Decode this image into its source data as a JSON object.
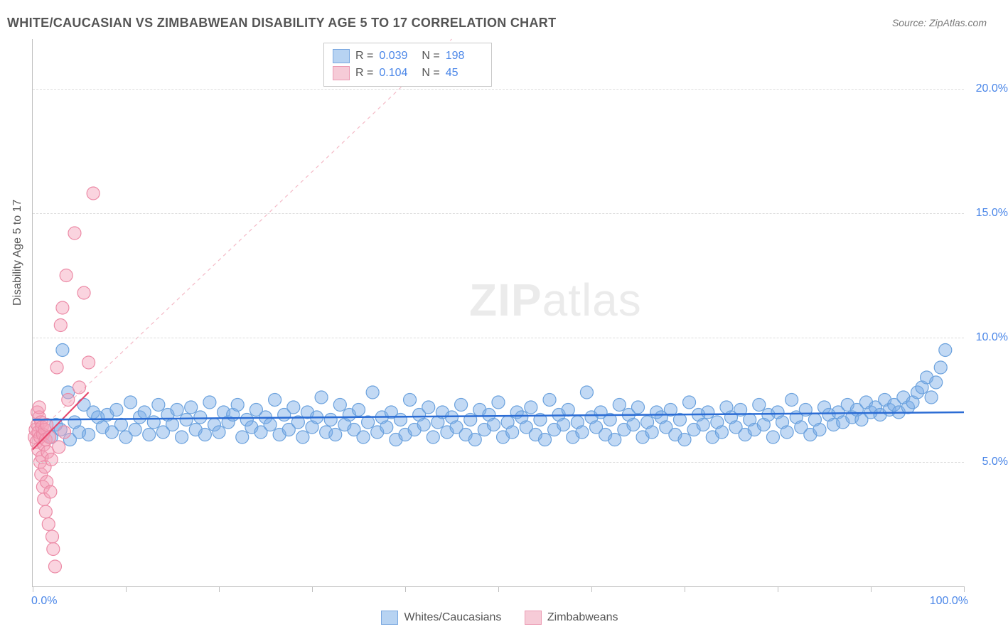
{
  "title": "WHITE/CAUCASIAN VS ZIMBABWEAN DISABILITY AGE 5 TO 17 CORRELATION CHART",
  "source_label": "Source: ZipAtlas.com",
  "y_axis_label": "Disability Age 5 to 17",
  "watermark": {
    "zip": "ZIP",
    "atlas": "atlas"
  },
  "chart": {
    "type": "scatter",
    "x_min": 0.0,
    "x_max": 100.0,
    "y_min": 0.0,
    "y_max": 22.0,
    "y_ticks": [
      5.0,
      10.0,
      15.0,
      20.0
    ],
    "y_tick_labels": [
      "5.0%",
      "10.0%",
      "15.0%",
      "20.0%"
    ],
    "x_ticks": [
      0,
      10,
      20,
      30,
      40,
      50,
      60,
      70,
      80,
      90,
      100
    ],
    "x_axis_min_label": "0.0%",
    "x_axis_max_label": "100.0%",
    "grid_color": "#dcdcdc",
    "axis_color": "#bfbfbf",
    "marker_radius": 9,
    "marker_stroke_width": 1.2,
    "series": [
      {
        "name": "Whites/Caucasians",
        "fill_color": "rgba(120,170,230,0.45)",
        "stroke_color": "#6aa1dd",
        "swatch_fill": "#b7d3f2",
        "swatch_border": "#7aa8e0",
        "r_value": "0.039",
        "n_value": "198",
        "regression": {
          "x1": 0.0,
          "y1": 6.7,
          "x2": 100.0,
          "y2": 7.0,
          "color": "#2b6cd4",
          "width": 2.5,
          "dash": "none"
        },
        "trend_dash": {
          "x1": 0.0,
          "y1": 6.0,
          "x2": 45.0,
          "y2": 22.0,
          "color": "#f4b9c6",
          "width": 1.2,
          "dash": "5,5"
        },
        "points": [
          [
            2.0,
            6.0
          ],
          [
            2.5,
            6.5
          ],
          [
            3.0,
            6.3
          ],
          [
            3.2,
            9.5
          ],
          [
            3.8,
            7.8
          ],
          [
            4.0,
            5.9
          ],
          [
            4.5,
            6.6
          ],
          [
            5.0,
            6.2
          ],
          [
            5.5,
            7.3
          ],
          [
            6.0,
            6.1
          ],
          [
            6.5,
            7.0
          ],
          [
            7.0,
            6.8
          ],
          [
            7.5,
            6.4
          ],
          [
            8.0,
            6.9
          ],
          [
            8.5,
            6.2
          ],
          [
            9.0,
            7.1
          ],
          [
            9.5,
            6.5
          ],
          [
            10.0,
            6.0
          ],
          [
            10.5,
            7.4
          ],
          [
            11.0,
            6.3
          ],
          [
            11.5,
            6.8
          ],
          [
            12.0,
            7.0
          ],
          [
            12.5,
            6.1
          ],
          [
            13.0,
            6.6
          ],
          [
            13.5,
            7.3
          ],
          [
            14.0,
            6.2
          ],
          [
            14.5,
            6.9
          ],
          [
            15.0,
            6.5
          ],
          [
            15.5,
            7.1
          ],
          [
            16.0,
            6.0
          ],
          [
            16.5,
            6.7
          ],
          [
            17.0,
            7.2
          ],
          [
            17.5,
            6.3
          ],
          [
            18.0,
            6.8
          ],
          [
            18.5,
            6.1
          ],
          [
            19.0,
            7.4
          ],
          [
            19.5,
            6.5
          ],
          [
            20.0,
            6.2
          ],
          [
            20.5,
            7.0
          ],
          [
            21.0,
            6.6
          ],
          [
            21.5,
            6.9
          ],
          [
            22.0,
            7.3
          ],
          [
            22.5,
            6.0
          ],
          [
            23.0,
            6.7
          ],
          [
            23.5,
            6.4
          ],
          [
            24.0,
            7.1
          ],
          [
            24.5,
            6.2
          ],
          [
            25.0,
            6.8
          ],
          [
            25.5,
            6.5
          ],
          [
            26.0,
            7.5
          ],
          [
            26.5,
            6.1
          ],
          [
            27.0,
            6.9
          ],
          [
            27.5,
            6.3
          ],
          [
            28.0,
            7.2
          ],
          [
            28.5,
            6.6
          ],
          [
            29.0,
            6.0
          ],
          [
            29.5,
            7.0
          ],
          [
            30.0,
            6.4
          ],
          [
            30.5,
            6.8
          ],
          [
            31.0,
            7.6
          ],
          [
            31.5,
            6.2
          ],
          [
            32.0,
            6.7
          ],
          [
            32.5,
            6.1
          ],
          [
            33.0,
            7.3
          ],
          [
            33.5,
            6.5
          ],
          [
            34.0,
            6.9
          ],
          [
            34.5,
            6.3
          ],
          [
            35.0,
            7.1
          ],
          [
            35.5,
            6.0
          ],
          [
            36.0,
            6.6
          ],
          [
            36.5,
            7.8
          ],
          [
            37.0,
            6.2
          ],
          [
            37.5,
            6.8
          ],
          [
            38.0,
            6.4
          ],
          [
            38.5,
            7.0
          ],
          [
            39.0,
            5.9
          ],
          [
            39.5,
            6.7
          ],
          [
            40.0,
            6.1
          ],
          [
            40.5,
            7.5
          ],
          [
            41.0,
            6.3
          ],
          [
            41.5,
            6.9
          ],
          [
            42.0,
            6.5
          ],
          [
            42.5,
            7.2
          ],
          [
            43.0,
            6.0
          ],
          [
            43.5,
            6.6
          ],
          [
            44.0,
            7.0
          ],
          [
            44.5,
            6.2
          ],
          [
            45.0,
            6.8
          ],
          [
            45.5,
            6.4
          ],
          [
            46.0,
            7.3
          ],
          [
            46.5,
            6.1
          ],
          [
            47.0,
            6.7
          ],
          [
            47.5,
            5.9
          ],
          [
            48.0,
            7.1
          ],
          [
            48.5,
            6.3
          ],
          [
            49.0,
            6.9
          ],
          [
            49.5,
            6.5
          ],
          [
            50.0,
            7.4
          ],
          [
            50.5,
            6.0
          ],
          [
            51.0,
            6.6
          ],
          [
            51.5,
            6.2
          ],
          [
            52.0,
            7.0
          ],
          [
            52.5,
            6.8
          ],
          [
            53.0,
            6.4
          ],
          [
            53.5,
            7.2
          ],
          [
            54.0,
            6.1
          ],
          [
            54.5,
            6.7
          ],
          [
            55.0,
            5.9
          ],
          [
            55.5,
            7.5
          ],
          [
            56.0,
            6.3
          ],
          [
            56.5,
            6.9
          ],
          [
            57.0,
            6.5
          ],
          [
            57.5,
            7.1
          ],
          [
            58.0,
            6.0
          ],
          [
            58.5,
            6.6
          ],
          [
            59.0,
            6.2
          ],
          [
            59.5,
            7.8
          ],
          [
            60.0,
            6.8
          ],
          [
            60.5,
            6.4
          ],
          [
            61.0,
            7.0
          ],
          [
            61.5,
            6.1
          ],
          [
            62.0,
            6.7
          ],
          [
            62.5,
            5.9
          ],
          [
            63.0,
            7.3
          ],
          [
            63.5,
            6.3
          ],
          [
            64.0,
            6.9
          ],
          [
            64.5,
            6.5
          ],
          [
            65.0,
            7.2
          ],
          [
            65.5,
            6.0
          ],
          [
            66.0,
            6.6
          ],
          [
            66.5,
            6.2
          ],
          [
            67.0,
            7.0
          ],
          [
            67.5,
            6.8
          ],
          [
            68.0,
            6.4
          ],
          [
            68.5,
            7.1
          ],
          [
            69.0,
            6.1
          ],
          [
            69.5,
            6.7
          ],
          [
            70.0,
            5.9
          ],
          [
            70.5,
            7.4
          ],
          [
            71.0,
            6.3
          ],
          [
            71.5,
            6.9
          ],
          [
            72.0,
            6.5
          ],
          [
            72.5,
            7.0
          ],
          [
            73.0,
            6.0
          ],
          [
            73.5,
            6.6
          ],
          [
            74.0,
            6.2
          ],
          [
            74.5,
            7.2
          ],
          [
            75.0,
            6.8
          ],
          [
            75.5,
            6.4
          ],
          [
            76.0,
            7.1
          ],
          [
            76.5,
            6.1
          ],
          [
            77.0,
            6.7
          ],
          [
            77.5,
            6.3
          ],
          [
            78.0,
            7.3
          ],
          [
            78.5,
            6.5
          ],
          [
            79.0,
            6.9
          ],
          [
            79.5,
            6.0
          ],
          [
            80.0,
            7.0
          ],
          [
            80.5,
            6.6
          ],
          [
            81.0,
            6.2
          ],
          [
            81.5,
            7.5
          ],
          [
            82.0,
            6.8
          ],
          [
            82.5,
            6.4
          ],
          [
            83.0,
            7.1
          ],
          [
            83.5,
            6.1
          ],
          [
            84.0,
            6.7
          ],
          [
            84.5,
            6.3
          ],
          [
            85.0,
            7.2
          ],
          [
            85.5,
            6.9
          ],
          [
            86.0,
            6.5
          ],
          [
            86.5,
            7.0
          ],
          [
            87.0,
            6.6
          ],
          [
            87.5,
            7.3
          ],
          [
            88.0,
            6.8
          ],
          [
            88.5,
            7.1
          ],
          [
            89.0,
            6.7
          ],
          [
            89.5,
            7.4
          ],
          [
            90.0,
            7.0
          ],
          [
            90.5,
            7.2
          ],
          [
            91.0,
            6.9
          ],
          [
            91.5,
            7.5
          ],
          [
            92.0,
            7.1
          ],
          [
            92.5,
            7.3
          ],
          [
            93.0,
            7.0
          ],
          [
            93.5,
            7.6
          ],
          [
            94.0,
            7.2
          ],
          [
            94.5,
            7.4
          ],
          [
            95.0,
            7.8
          ],
          [
            95.5,
            8.0
          ],
          [
            96.0,
            8.4
          ],
          [
            96.5,
            7.6
          ],
          [
            97.0,
            8.2
          ],
          [
            97.5,
            8.8
          ],
          [
            98.0,
            9.5
          ]
        ]
      },
      {
        "name": "Zimbabweans",
        "fill_color": "rgba(244,160,185,0.45)",
        "stroke_color": "#ec8aa6",
        "swatch_fill": "#f6cbd7",
        "swatch_border": "#eb9ab3",
        "r_value": "0.104",
        "n_value": "45",
        "regression": {
          "x1": 0.0,
          "y1": 5.5,
          "x2": 6.0,
          "y2": 7.8,
          "color": "#e6446a",
          "width": 2.0,
          "dash": "none"
        },
        "points": [
          [
            0.2,
            6.0
          ],
          [
            0.3,
            6.3
          ],
          [
            0.4,
            5.8
          ],
          [
            0.5,
            6.5
          ],
          [
            0.5,
            7.0
          ],
          [
            0.6,
            6.2
          ],
          [
            0.6,
            5.5
          ],
          [
            0.7,
            6.8
          ],
          [
            0.7,
            7.2
          ],
          [
            0.8,
            5.0
          ],
          [
            0.8,
            6.0
          ],
          [
            0.9,
            6.6
          ],
          [
            0.9,
            4.5
          ],
          [
            1.0,
            5.2
          ],
          [
            1.0,
            6.4
          ],
          [
            1.1,
            4.0
          ],
          [
            1.1,
            6.1
          ],
          [
            1.2,
            5.7
          ],
          [
            1.2,
            3.5
          ],
          [
            1.3,
            6.3
          ],
          [
            1.3,
            4.8
          ],
          [
            1.4,
            5.9
          ],
          [
            1.4,
            3.0
          ],
          [
            1.5,
            6.5
          ],
          [
            1.5,
            4.2
          ],
          [
            1.6,
            5.4
          ],
          [
            1.7,
            2.5
          ],
          [
            1.8,
            6.0
          ],
          [
            1.9,
            3.8
          ],
          [
            2.0,
            5.1
          ],
          [
            2.1,
            2.0
          ],
          [
            2.2,
            1.5
          ],
          [
            2.4,
            0.8
          ],
          [
            2.6,
            8.8
          ],
          [
            2.8,
            5.6
          ],
          [
            3.0,
            10.5
          ],
          [
            3.2,
            11.2
          ],
          [
            3.4,
            6.2
          ],
          [
            3.6,
            12.5
          ],
          [
            3.8,
            7.5
          ],
          [
            4.5,
            14.2
          ],
          [
            5.0,
            8.0
          ],
          [
            5.5,
            11.8
          ],
          [
            6.0,
            9.0
          ],
          [
            6.5,
            15.8
          ]
        ]
      }
    ]
  },
  "bottom_legend": [
    {
      "label": "Whites/Caucasians"
    },
    {
      "label": "Zimbabweans"
    }
  ]
}
